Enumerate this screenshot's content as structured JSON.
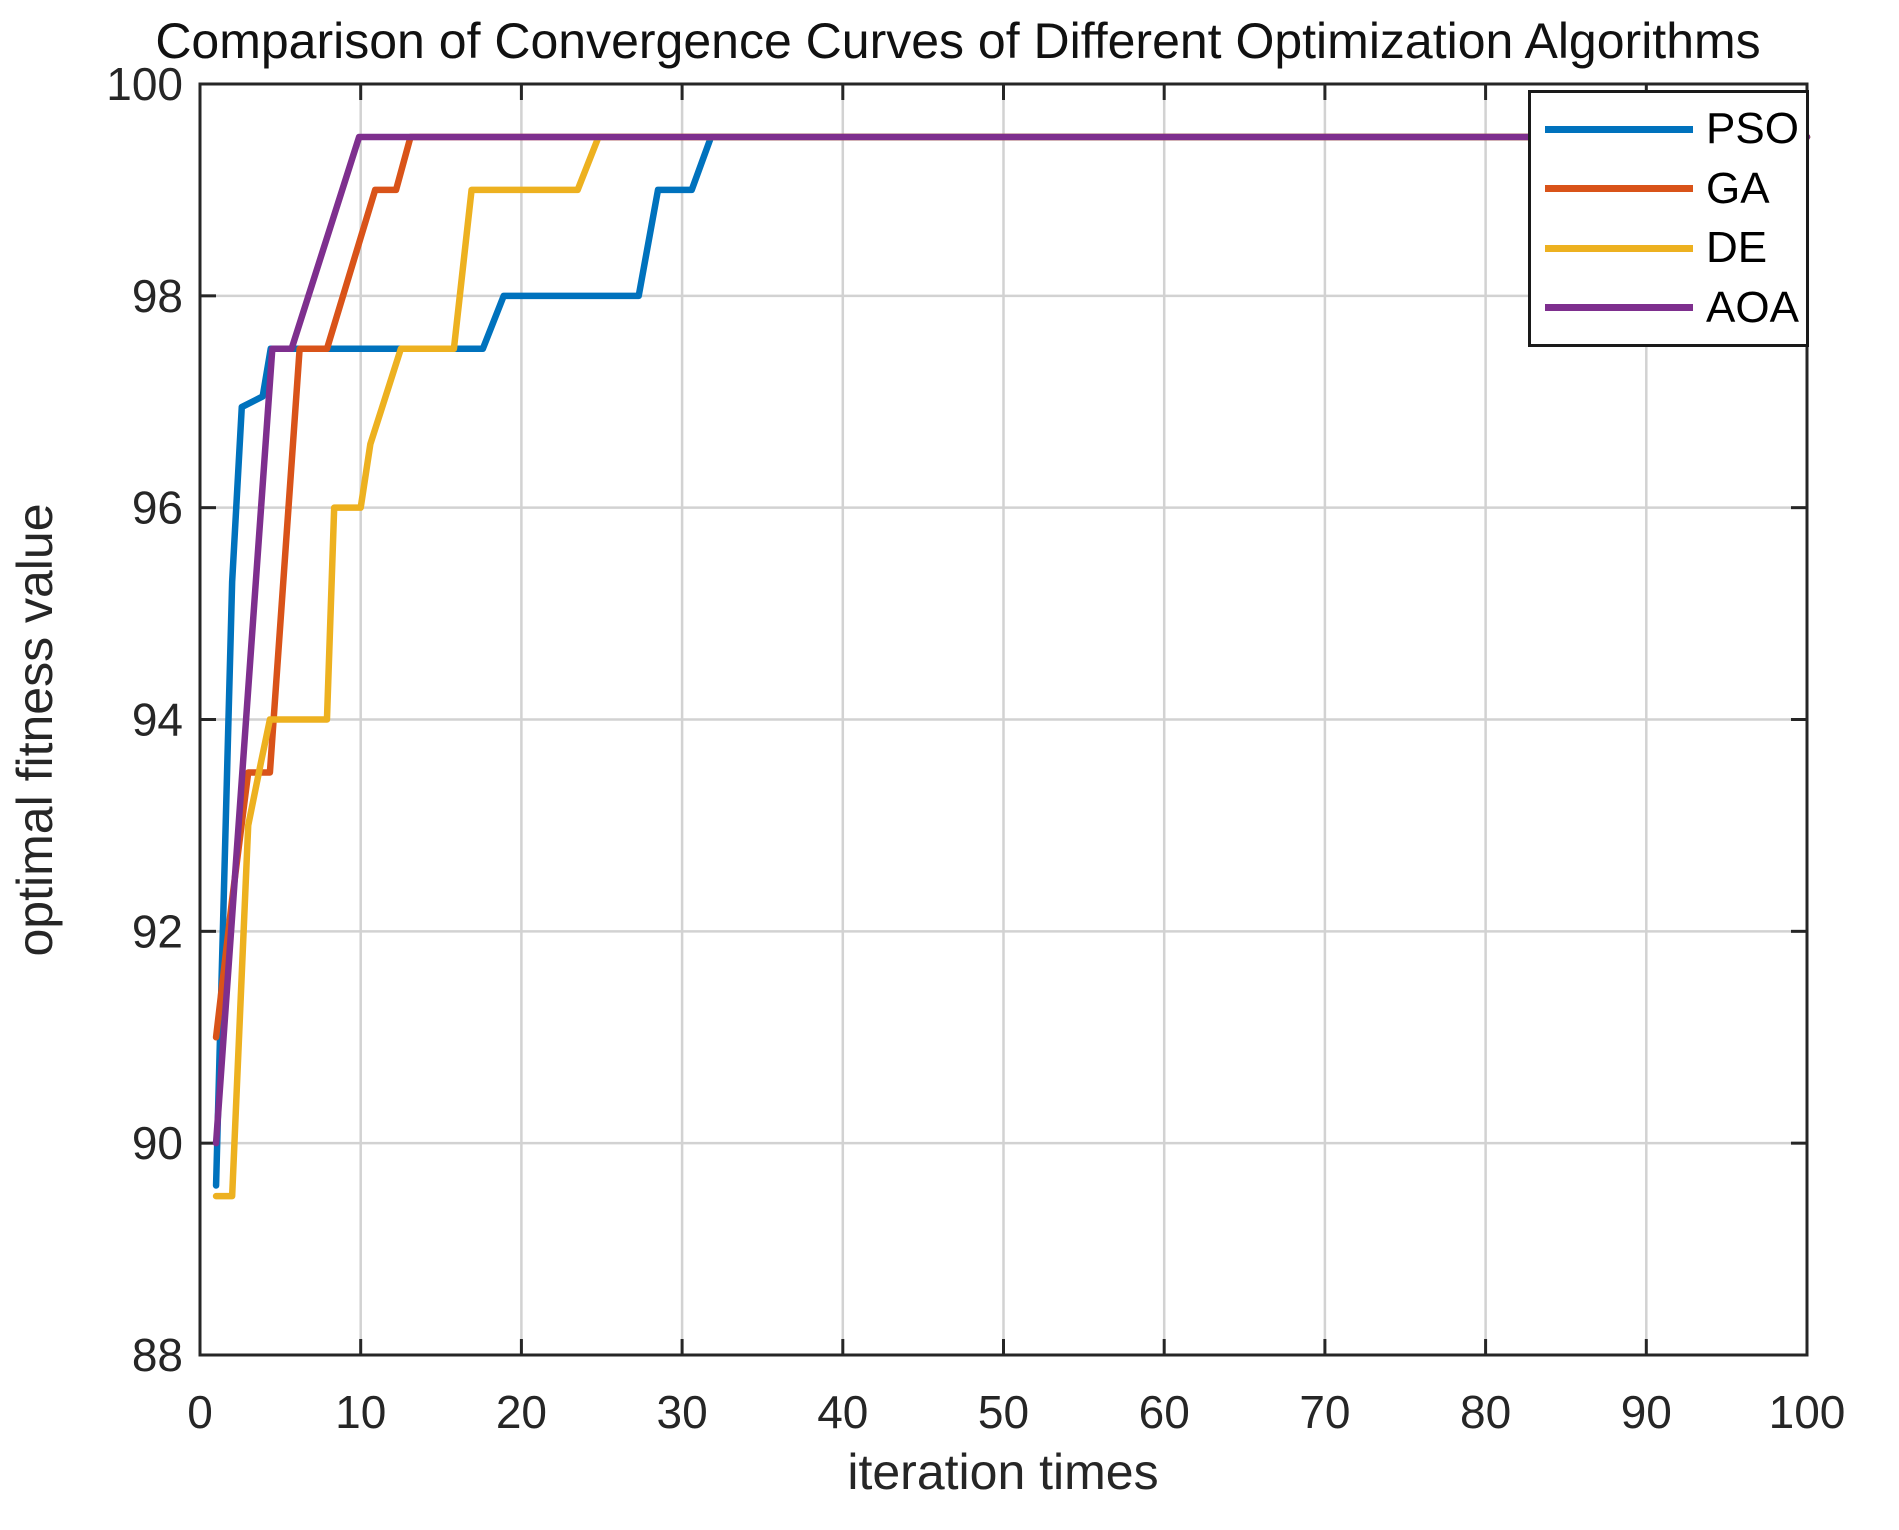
{
  "title": "Comparison of Convergence Curves of Different Optimization Algorithms",
  "colors": {
    "background": "#ffffff",
    "frame": "#262626",
    "grid": "#d2d2d2",
    "tick_text": "#262626",
    "title_text": "#111111",
    "pso_blue": "#0072BD",
    "ga_orange": "#D95319",
    "de_yellow": "#EDB120",
    "aoa_purple": "#7E2F8E"
  },
  "chart_data": {
    "type": "line",
    "title": "Comparison of Convergence Curves of Different Optimization Algorithms",
    "xlabel": "iteration times",
    "ylabel": "optimal fitness value",
    "xlim": [
      0,
      100
    ],
    "ylim": [
      88,
      100
    ],
    "xticks": [
      0,
      10,
      20,
      30,
      40,
      50,
      60,
      70,
      80,
      90,
      100
    ],
    "yticks": [
      88,
      90,
      92,
      94,
      96,
      98,
      100
    ],
    "grid": true,
    "legend_position": "northeast",
    "series": [
      {
        "name": "PSO",
        "color": "#0072BD",
        "points": [
          [
            1,
            89.6
          ],
          [
            2,
            95.3
          ],
          [
            2.6,
            96.95
          ],
          [
            3.9,
            97.05
          ],
          [
            4.4,
            97.5
          ],
          [
            17.6,
            97.5
          ],
          [
            18.9,
            98
          ],
          [
            27.3,
            98
          ],
          [
            28.5,
            99
          ],
          [
            30.6,
            99
          ],
          [
            31.8,
            99.5
          ],
          [
            100,
            99.5
          ]
        ]
      },
      {
        "name": "GA",
        "color": "#D95319",
        "points": [
          [
            1,
            91
          ],
          [
            2,
            92.3
          ],
          [
            3,
            93.5
          ],
          [
            4.35,
            93.5
          ],
          [
            6.2,
            97.5
          ],
          [
            7.9,
            97.5
          ],
          [
            10.9,
            99
          ],
          [
            12.2,
            99
          ],
          [
            13.1,
            99.5
          ],
          [
            100,
            99.5
          ]
        ]
      },
      {
        "name": "DE",
        "color": "#EDB120",
        "points": [
          [
            1,
            89.5
          ],
          [
            2,
            89.5
          ],
          [
            3,
            93
          ],
          [
            3.8,
            93.6
          ],
          [
            4.35,
            94
          ],
          [
            7.9,
            94
          ],
          [
            8.35,
            96
          ],
          [
            10,
            96
          ],
          [
            10.6,
            96.6
          ],
          [
            12.5,
            97.5
          ],
          [
            15.8,
            97.5
          ],
          [
            16.9,
            99
          ],
          [
            23.5,
            99
          ],
          [
            24.8,
            99.5
          ],
          [
            100,
            99.5
          ]
        ]
      },
      {
        "name": "AOA",
        "color": "#7E2F8E",
        "points": [
          [
            1,
            90
          ],
          [
            4.5,
            97.5
          ],
          [
            5.7,
            97.5
          ],
          [
            9.9,
            99.5
          ],
          [
            100,
            99.5
          ]
        ]
      }
    ]
  }
}
